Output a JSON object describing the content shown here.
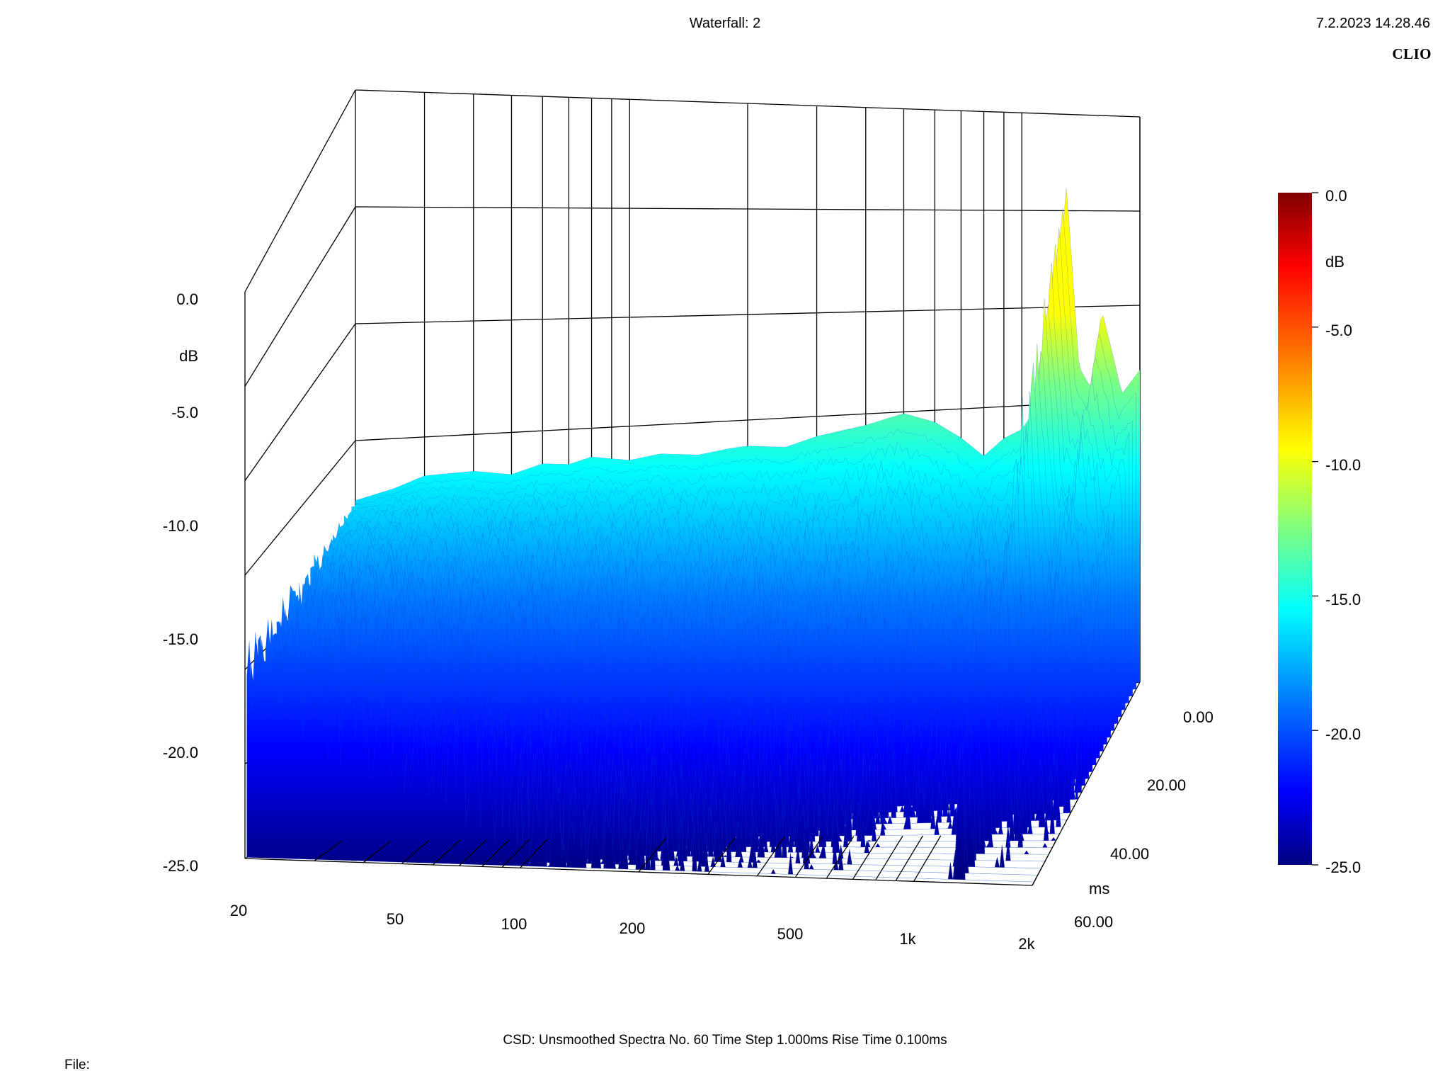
{
  "header": {
    "title": "Waterfall: 2",
    "timestamp": "7.2.2023 14.28.46",
    "brand": "CLIO"
  },
  "footer": {
    "info": "CSD:   Unsmoothed   Spectra No. 60   Time Step 1.000ms   Rise Time 0.100ms",
    "file_label": "File:"
  },
  "colors": {
    "colormap": [
      "#00007f",
      "#0000ff",
      "#0080ff",
      "#00ffff",
      "#80ff80",
      "#ffff00",
      "#ff8000",
      "#ff0000",
      "#7f0000"
    ]
  },
  "chart_data": {
    "type": "heatmap",
    "subtype": "waterfall-3d",
    "title": "Waterfall: 2",
    "x_axis": {
      "ticks": [
        "20",
        "50",
        "100",
        "200",
        "500",
        "1k",
        "2k"
      ],
      "scale": "log",
      "range": [
        20,
        2000
      ]
    },
    "y_axis": {
      "label": "dB",
      "ticks": [
        "0.0",
        "-5.0",
        "-10.0",
        "-15.0",
        "-20.0",
        "-25.0"
      ],
      "range": [
        -25,
        0
      ]
    },
    "z_axis": {
      "label": "ms",
      "ticks": [
        "0.00",
        "20.00",
        "40.00",
        "60.00"
      ],
      "range": [
        0,
        60
      ]
    },
    "colorbar": {
      "label": "dB",
      "ticks": [
        "0.0",
        "-5.0",
        "-10.0",
        "-15.0",
        "-20.0",
        "-25.0"
      ],
      "range": [
        -25,
        0
      ]
    },
    "front_spectrum": {
      "freq": [
        20,
        25,
        30,
        40,
        50,
        60,
        70,
        80,
        100,
        120,
        150,
        180,
        200,
        250,
        300,
        400,
        500,
        600,
        700,
        800,
        900,
        1000,
        1100,
        1200,
        1300,
        1400,
        1500,
        1600,
        1700,
        1800,
        2000
      ],
      "db": [
        -11.5,
        -11.2,
        -10.8,
        -10.9,
        -11.3,
        -11.0,
        -11.2,
        -11.0,
        -11.4,
        -11.3,
        -11.6,
        -11.5,
        -11.5,
        -11.8,
        -11.5,
        -11.3,
        -11.0,
        -11.6,
        -12.5,
        -13.5,
        -12.8,
        -12.5,
        -11.5,
        -8.5,
        -1.5,
        -10.0,
        -11.0,
        -7.5,
        -9.5,
        -11.5,
        -10.5
      ]
    },
    "spectra_count": 60,
    "time_step_ms": 1.0
  }
}
